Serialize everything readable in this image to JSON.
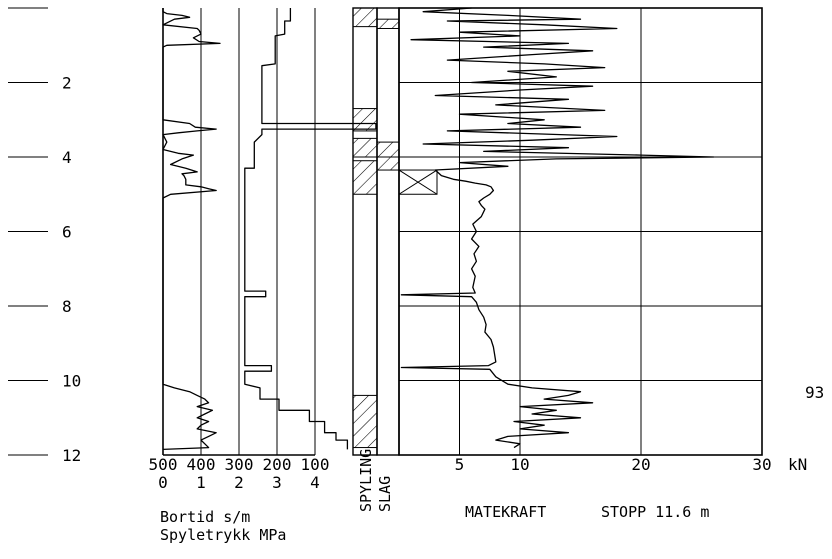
{
  "chart_data": {
    "type": "line",
    "title": "",
    "depth_axis": {
      "ticks": [
        "2",
        "4",
        "6",
        "8",
        "10",
        "12"
      ],
      "values": [
        2,
        4,
        6,
        8,
        10,
        12
      ],
      "ylim": [
        0,
        12
      ]
    },
    "label_93": "93",
    "bortid_panel": {
      "label_line1": "Bortid s/m",
      "label_line2": "Spyletrykk MPa",
      "bortid_ticks": [
        "500",
        "400",
        "300",
        "200",
        "100"
      ],
      "spyletrykk_ticks": [
        "0",
        "1",
        "2",
        "3",
        "4"
      ],
      "bortid_xlim": [
        500,
        0
      ],
      "spyletrykk_xlim": [
        0,
        5
      ],
      "spyletrykk_series": [
        [
          0,
          0.0
        ],
        [
          0.1,
          0.0
        ],
        [
          0.15,
          0.1
        ],
        [
          0.2,
          0.5
        ],
        [
          0.25,
          0.7
        ],
        [
          0.3,
          0.3
        ],
        [
          0.4,
          0.1
        ],
        [
          0.45,
          0.0
        ],
        [
          0.55,
          0.9
        ],
        [
          0.6,
          0.95
        ],
        [
          0.7,
          1.0
        ],
        [
          0.8,
          0.8
        ],
        [
          0.9,
          0.95
        ],
        [
          0.95,
          1.5
        ],
        [
          1.0,
          0.1
        ],
        [
          1.05,
          0.0
        ],
        [
          3.0,
          0.0
        ],
        [
          3.1,
          0.7
        ],
        [
          3.2,
          0.85
        ],
        [
          3.25,
          1.4
        ],
        [
          3.3,
          0.9
        ],
        [
          3.35,
          0.4
        ],
        [
          3.4,
          0.0
        ],
        [
          3.6,
          0.1
        ],
        [
          3.8,
          0.0
        ],
        [
          3.9,
          0.4
        ],
        [
          3.95,
          0.8
        ],
        [
          4.05,
          0.5
        ],
        [
          4.2,
          0.2
        ],
        [
          4.3,
          0.6
        ],
        [
          4.4,
          0.9
        ],
        [
          4.45,
          0.5
        ],
        [
          4.5,
          0.55
        ],
        [
          4.6,
          0.6
        ],
        [
          4.75,
          0.6
        ],
        [
          4.8,
          1.0
        ],
        [
          4.85,
          1.2
        ],
        [
          4.9,
          1.4
        ],
        [
          5.0,
          0.2
        ],
        [
          5.1,
          0.0
        ],
        [
          10.1,
          0.0
        ],
        [
          10.2,
          0.3
        ],
        [
          10.3,
          0.7
        ],
        [
          10.4,
          0.9
        ],
        [
          10.5,
          1.1
        ],
        [
          10.6,
          1.2
        ],
        [
          10.7,
          0.9
        ],
        [
          10.8,
          1.3
        ],
        [
          10.9,
          1.1
        ],
        [
          11.0,
          0.9
        ],
        [
          11.1,
          1.2
        ],
        [
          11.2,
          1.0
        ],
        [
          11.3,
          0.9
        ],
        [
          11.4,
          1.4
        ],
        [
          11.5,
          1.2
        ],
        [
          11.6,
          1.0
        ],
        [
          11.7,
          1.1
        ],
        [
          11.8,
          1.2
        ],
        [
          11.85,
          0.0
        ]
      ],
      "bortid_series": [
        [
          0,
          2.3
        ],
        [
          0.35,
          2.3
        ],
        [
          0.35,
          2.15
        ],
        [
          0.7,
          2.15
        ],
        [
          0.75,
          1.9
        ],
        [
          1.5,
          1.9
        ],
        [
          1.55,
          1.55
        ],
        [
          3.1,
          1.55
        ],
        [
          3.1,
          4.55
        ],
        [
          3.25,
          4.55
        ],
        [
          3.25,
          1.55
        ],
        [
          3.4,
          1.55
        ],
        [
          3.6,
          1.35
        ],
        [
          4.0,
          1.35
        ],
        [
          4.3,
          1.35
        ],
        [
          4.3,
          1.1
        ],
        [
          7.6,
          1.1
        ],
        [
          7.6,
          1.65
        ],
        [
          7.75,
          1.65
        ],
        [
          7.75,
          1.1
        ],
        [
          9.6,
          1.1
        ],
        [
          9.6,
          1.8
        ],
        [
          9.75,
          1.8
        ],
        [
          9.75,
          1.1
        ],
        [
          10.1,
          1.1
        ],
        [
          10.2,
          1.5
        ],
        [
          10.5,
          1.5
        ],
        [
          10.5,
          2.0
        ],
        [
          10.8,
          2.0
        ],
        [
          10.8,
          2.8
        ],
        [
          11.1,
          2.8
        ],
        [
          11.1,
          3.2
        ],
        [
          11.4,
          3.2
        ],
        [
          11.4,
          3.5
        ],
        [
          11.6,
          3.5
        ],
        [
          11.6,
          3.8
        ],
        [
          11.85,
          3.8
        ]
      ]
    },
    "spyling_slag_panel": {
      "label_spyling": "SPYLING",
      "label_slag": "SLAG",
      "spyling_hatched": [
        [
          0,
          0.5
        ],
        [
          2.7,
          3.3
        ],
        [
          3.5,
          4.0
        ],
        [
          4.1,
          5.0
        ],
        [
          10.4,
          11.8
        ]
      ],
      "slag_hatched": [
        [
          0.3,
          0.55
        ],
        [
          3.6,
          4.0
        ],
        [
          4.0,
          4.35
        ]
      ]
    },
    "matekraft_panel": {
      "label": "MATEKRAFT",
      "stop_label": "STOPP 11.6 m",
      "ticks": [
        "5",
        "10",
        "20",
        "30"
      ],
      "tick_values": [
        5,
        10,
        20,
        30
      ],
      "unit": "kN",
      "xlim": [
        0,
        30
      ],
      "crossed_interval": [
        4.35,
        5.0
      ],
      "series": [
        [
          0.0,
          6
        ],
        [
          0.1,
          2
        ],
        [
          0.2,
          9
        ],
        [
          0.3,
          15
        ],
        [
          0.35,
          4
        ],
        [
          0.45,
          12
        ],
        [
          0.55,
          18
        ],
        [
          0.65,
          5
        ],
        [
          0.75,
          10
        ],
        [
          0.85,
          1
        ],
        [
          0.95,
          14
        ],
        [
          1.05,
          7
        ],
        [
          1.15,
          16
        ],
        [
          1.25,
          11
        ],
        [
          1.4,
          4
        ],
        [
          1.5,
          12
        ],
        [
          1.6,
          17
        ],
        [
          1.7,
          9
        ],
        [
          1.85,
          13
        ],
        [
          2.0,
          6
        ],
        [
          2.1,
          16
        ],
        [
          2.2,
          10
        ],
        [
          2.35,
          3
        ],
        [
          2.45,
          14
        ],
        [
          2.6,
          8
        ],
        [
          2.75,
          17
        ],
        [
          2.85,
          5
        ],
        [
          3.0,
          12
        ],
        [
          3.1,
          9
        ],
        [
          3.2,
          15
        ],
        [
          3.3,
          4
        ],
        [
          3.45,
          18
        ],
        [
          3.55,
          11
        ],
        [
          3.65,
          2
        ],
        [
          3.75,
          14
        ],
        [
          3.85,
          7
        ],
        [
          3.95,
          20
        ],
        [
          4.0,
          26
        ],
        [
          4.05,
          13
        ],
        [
          4.15,
          5
        ],
        [
          4.25,
          9
        ],
        [
          4.35,
          3
        ],
        [
          4.5,
          3.5
        ],
        [
          4.6,
          4.5
        ],
        [
          4.65,
          5.5
        ],
        [
          4.7,
          6.3
        ],
        [
          4.75,
          7.2
        ],
        [
          4.8,
          7.6
        ],
        [
          4.9,
          7.8
        ],
        [
          5.0,
          7.5
        ],
        [
          5.1,
          7.0
        ],
        [
          5.2,
          6.6
        ],
        [
          5.3,
          6.8
        ],
        [
          5.4,
          7.1
        ],
        [
          5.6,
          6.8
        ],
        [
          5.8,
          6.1
        ],
        [
          6.0,
          6.4
        ],
        [
          6.2,
          6.0
        ],
        [
          6.4,
          6.6
        ],
        [
          6.6,
          6.2
        ],
        [
          6.8,
          6.4
        ],
        [
          7.0,
          6.0
        ],
        [
          7.2,
          6.3
        ],
        [
          7.5,
          6.1
        ],
        [
          7.65,
          6.3
        ],
        [
          7.7,
          0.2
        ],
        [
          7.75,
          6.0
        ],
        [
          7.9,
          6.4
        ],
        [
          8.1,
          6.6
        ],
        [
          8.3,
          7.0
        ],
        [
          8.5,
          7.2
        ],
        [
          8.7,
          7.1
        ],
        [
          8.9,
          7.6
        ],
        [
          9.1,
          7.8
        ],
        [
          9.3,
          7.9
        ],
        [
          9.5,
          8.0
        ],
        [
          9.6,
          7.4
        ],
        [
          9.65,
          0.2
        ],
        [
          9.7,
          7.5
        ],
        [
          9.9,
          8.0
        ],
        [
          10.1,
          9.0
        ],
        [
          10.2,
          11.0
        ],
        [
          10.3,
          15.0
        ],
        [
          10.4,
          14.0
        ],
        [
          10.5,
          12.0
        ],
        [
          10.6,
          16.0
        ],
        [
          10.7,
          10.0
        ],
        [
          10.8,
          13.0
        ],
        [
          10.9,
          11.0
        ],
        [
          11.0,
          15.0
        ],
        [
          11.1,
          9.5
        ],
        [
          11.2,
          12.0
        ],
        [
          11.3,
          10.0
        ],
        [
          11.4,
          14.0
        ],
        [
          11.5,
          9.0
        ],
        [
          11.6,
          8.0
        ],
        [
          11.7,
          10.0
        ],
        [
          11.8,
          9.5
        ]
      ]
    }
  }
}
